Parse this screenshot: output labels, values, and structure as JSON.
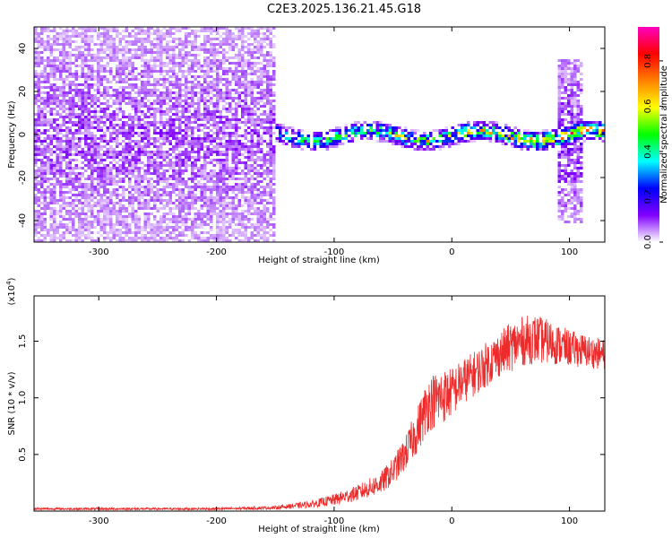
{
  "title": "C2E3.2025.136.21.45.G18",
  "chart_data": [
    {
      "type": "heatmap",
      "xlabel": "Height of straight line (km)",
      "ylabel": "Frequency (Hz)",
      "xlim": [
        -355,
        130
      ],
      "ylim": [
        -50,
        50
      ],
      "xticks": [
        -300,
        -200,
        -100,
        0,
        100
      ],
      "yticks": [
        -40,
        -20,
        0,
        20,
        40
      ],
      "colorbar": {
        "label": "Normalized spectral amplitude",
        "range": [
          0.0,
          0.95
        ],
        "ticks": [
          0.0,
          0.2,
          0.4,
          0.6,
          0.8
        ],
        "colormap": [
          "#ffffff",
          "#8000ff",
          "#0000ff",
          "#00ffff",
          "#00ff00",
          "#ffff00",
          "#ff8000",
          "#ff0000",
          "#ff00c0"
        ]
      },
      "regions": [
        {
          "x_range": [
            -355,
            -150
          ],
          "freq_range": [
            -50,
            50
          ],
          "amplitude": 0.08,
          "description": "broadband noise"
        },
        {
          "x_range": [
            -150,
            130
          ],
          "freq_range": [
            -5,
            5
          ],
          "amplitude": 0.4,
          "description": "narrow carrier band"
        },
        {
          "x_range": [
            90,
            110
          ],
          "freq_range": [
            -40,
            35
          ],
          "amplitude": 0.1,
          "description": "spread"
        }
      ]
    },
    {
      "type": "line",
      "xlabel": "Height of straight line (km)",
      "ylabel": "SNR (10 * v/v)",
      "multiplier": "(x10",
      "multiplier_exp": "4",
      "xlim": [
        -355,
        130
      ],
      "ylim": [
        0,
        1.9
      ],
      "xticks": [
        -300,
        -200,
        -100,
        0,
        100
      ],
      "yticks": [
        0.5,
        1.0,
        1.5
      ],
      "ytick_labels": [
        "0.5",
        "1.0",
        "1.5"
      ],
      "series": [
        {
          "color": "#ee2b2b",
          "x": [
            -355,
            -300,
            -250,
            -200,
            -150,
            -120,
            -100,
            -80,
            -60,
            -50,
            -40,
            -30,
            -20,
            -10,
            0,
            10,
            20,
            30,
            40,
            50,
            60,
            70,
            80,
            90,
            100,
            110,
            120,
            130
          ],
          "y": [
            0.02,
            0.02,
            0.02,
            0.02,
            0.03,
            0.06,
            0.1,
            0.16,
            0.25,
            0.35,
            0.5,
            0.7,
            0.95,
            1.0,
            1.05,
            1.15,
            1.22,
            1.3,
            1.38,
            1.45,
            1.5,
            1.52,
            1.5,
            1.47,
            1.44,
            1.42,
            1.4,
            1.38
          ],
          "noise_amplitude": [
            0.01,
            0.01,
            0.01,
            0.01,
            0.015,
            0.03,
            0.05,
            0.07,
            0.1,
            0.12,
            0.15,
            0.2,
            0.25,
            0.25,
            0.22,
            0.2,
            0.2,
            0.2,
            0.2,
            0.22,
            0.22,
            0.22,
            0.2,
            0.18,
            0.16,
            0.15,
            0.14,
            0.14
          ]
        }
      ]
    }
  ]
}
